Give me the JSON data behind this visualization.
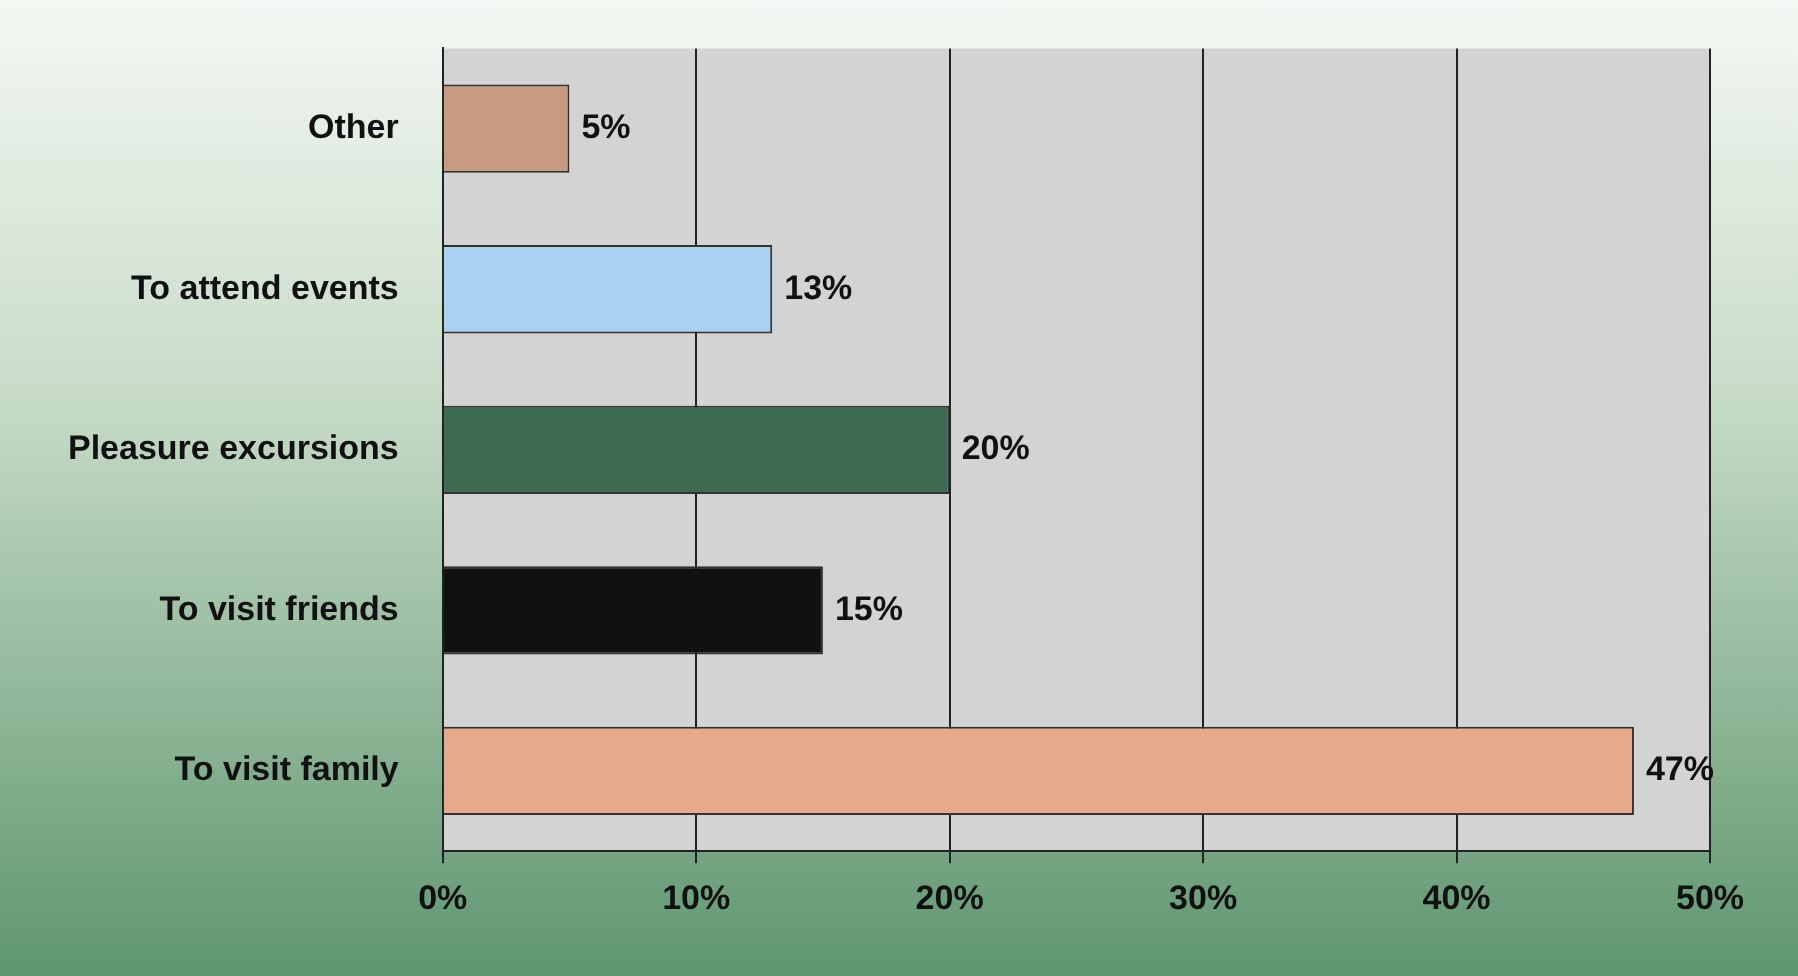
{
  "chart_data": {
    "type": "bar",
    "orientation": "horizontal",
    "categories": [
      "Other",
      "To attend events",
      "Pleasure excursions",
      "To visit friends",
      "To visit family"
    ],
    "values": [
      5,
      13,
      20,
      15,
      47
    ],
    "colors": [
      "#c89a82",
      "#a9d2f0",
      "#3d6b52",
      "#111111",
      "#e6a98c"
    ],
    "value_labels": [
      "5%",
      "13%",
      "20%",
      "15%",
      "47%"
    ],
    "xlim": [
      0,
      50
    ],
    "xticks": [
      {
        "value": 0,
        "label": "0%"
      },
      {
        "value": 10,
        "label": "10%"
      },
      {
        "value": 20,
        "label": "20%"
      },
      {
        "value": 30,
        "label": "30%"
      },
      {
        "value": 40,
        "label": "40%"
      },
      {
        "value": 50,
        "label": "50%"
      }
    ],
    "grid": "x",
    "legend": false
  }
}
